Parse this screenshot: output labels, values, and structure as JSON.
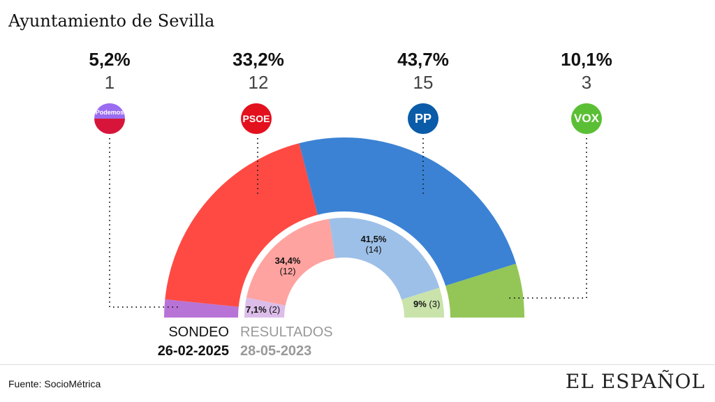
{
  "title": "Ayuntamiento de Sevilla",
  "chart_data": {
    "type": "pie",
    "subtype": "semicircle-double-ring",
    "title": "Ayuntamiento de Sevilla",
    "parties": [
      "Podemos-IU",
      "PSOE",
      "PP",
      "VOX"
    ],
    "colors_sondeo": [
      "#b873d6",
      "#ff4a44",
      "#3b82d4",
      "#93c656"
    ],
    "colors_resultados": [
      "#dcbde9",
      "#ffa3a0",
      "#9dc0e8",
      "#c9e3ab"
    ],
    "series": [
      {
        "name": "SONDEO",
        "date": "26-02-2025",
        "pct_labels": [
          "5,2%",
          "33,2%",
          "43,7%",
          "10,1%"
        ],
        "seats": [
          1,
          12,
          15,
          3
        ]
      },
      {
        "name": "RESULTADOS",
        "date": "28-05-2023",
        "pct_labels": [
          "7,1%",
          "34,4%",
          "41,5%",
          "9%"
        ],
        "seat_labels": [
          "(2)",
          "(12)",
          "(14)",
          "(3)"
        ],
        "seats": [
          2,
          12,
          14,
          3
        ]
      }
    ]
  },
  "logos": [
    "Podemos",
    "PSOE",
    "PP",
    "VOX"
  ],
  "source": "Fuente: SocioMétrica",
  "brand": "EL ESPAÑOL"
}
